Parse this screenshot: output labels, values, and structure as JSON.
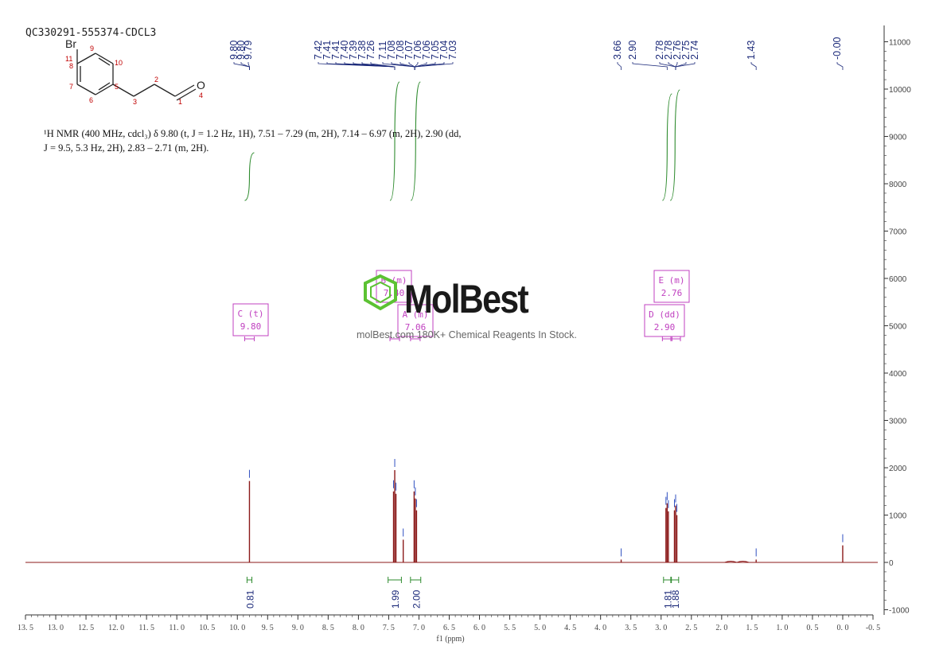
{
  "sample_id": "QC330291-555374-CDCL3",
  "structure": {
    "atoms": [
      {
        "label": "Br"
      },
      {
        "label": "11"
      },
      {
        "label": "8"
      },
      {
        "label": "9"
      },
      {
        "label": "10"
      },
      {
        "label": "7"
      },
      {
        "label": "5"
      },
      {
        "label": "6"
      },
      {
        "label": "3"
      },
      {
        "label": "2"
      },
      {
        "label": "1"
      },
      {
        "label": "O"
      },
      {
        "label": "4"
      }
    ]
  },
  "nmr_summary_lines": [
    "¹H NMR (400 MHz, cdcl₃) δ 9.80 (t, J = 1.2 Hz, 1H), 7.51 – 7.29 (m, 2H), 7.14 – 6.97 (m, 2H), 2.90 (dd,",
    "J = 9.5, 5.3 Hz, 2H), 2.83 – 2.71 (m, 2H)."
  ],
  "watermark": {
    "logo": "MolBest",
    "tagline": "molBest.com 180K+ Chemical Reagents In Stock."
  },
  "colors": {
    "spectrum": "#8b1a1a",
    "integral": "#2e8b2e",
    "peak_label": "#1c2a7a",
    "multiplet": "#c040c0",
    "logo_green": "#5cc233",
    "axis": "#333333"
  },
  "chart_data": {
    "type": "line",
    "xlabel": "f1 (ppm)",
    "x_reversed": true,
    "xlim": [
      13.5,
      -0.5
    ],
    "ylim": [
      -1000,
      11000
    ],
    "x_ticks": [
      "13.5",
      "13.0",
      "12.5",
      "12.0",
      "11.5",
      "11.0",
      "10.5",
      "10.0",
      "9.5",
      "9.0",
      "8.5",
      "8.0",
      "7.5",
      "7.0",
      "6.5",
      "6.0",
      "5.5",
      "5.0",
      "4.5",
      "4.0",
      "3.5",
      "3.0",
      "2.5",
      "2.0",
      "1.5",
      "1.0",
      "0.5",
      "0.0",
      "-0.5"
    ],
    "y_ticks": [
      "11000",
      "10000",
      "9000",
      "8000",
      "7000",
      "6000",
      "5000",
      "4000",
      "3000",
      "2000",
      "1000",
      "0",
      "-1000"
    ],
    "peaks": [
      {
        "ppm": 9.8,
        "height": 1720
      },
      {
        "ppm": 7.42,
        "height": 1500
      },
      {
        "ppm": 7.4,
        "height": 1950
      },
      {
        "ppm": 7.38,
        "height": 1450
      },
      {
        "ppm": 7.26,
        "height": 480
      },
      {
        "ppm": 7.08,
        "height": 1500
      },
      {
        "ppm": 7.06,
        "height": 1350
      },
      {
        "ppm": 7.04,
        "height": 1100
      },
      {
        "ppm": 3.66,
        "height": 60
      },
      {
        "ppm": 2.92,
        "height": 1150
      },
      {
        "ppm": 2.9,
        "height": 1250
      },
      {
        "ppm": 2.88,
        "height": 1080
      },
      {
        "ppm": 2.78,
        "height": 1100
      },
      {
        "ppm": 2.76,
        "height": 1200
      },
      {
        "ppm": 2.74,
        "height": 1000
      },
      {
        "ppm": 1.43,
        "height": 60
      },
      {
        "ppm": 0.0,
        "height": 360
      }
    ],
    "peak_label_groups": [
      {
        "labels": [
          "9.80",
          "9.80",
          "9.79"
        ],
        "anchor_ppm": 9.8
      },
      {
        "labels": [
          "7.42",
          "7.41",
          "7.41",
          "7.40",
          "7.39",
          "7.38",
          "7.26"
        ],
        "anchor_ppm": 7.4
      },
      {
        "labels": [
          "7.11",
          "7.08",
          "7.08",
          "7.07",
          "7.06",
          "7.06",
          "7.05",
          "7.04",
          "7.03"
        ],
        "anchor_ppm": 7.07
      },
      {
        "labels": [
          "3.66"
        ],
        "anchor_ppm": 3.66
      },
      {
        "labels": [
          "2.90"
        ],
        "anchor_ppm": 2.9
      },
      {
        "labels": [
          "2.78",
          "2.78",
          "2.76",
          "2.75",
          "2.74"
        ],
        "anchor_ppm": 2.76
      },
      {
        "labels": [
          "1.43"
        ],
        "anchor_ppm": 1.43
      },
      {
        "labels": [
          "-0.00"
        ],
        "anchor_ppm": 0.0
      }
    ],
    "integrals": [
      {
        "from": 9.84,
        "to": 9.76,
        "value": "0.81"
      },
      {
        "from": 7.51,
        "to": 7.29,
        "value": "1.99"
      },
      {
        "from": 7.14,
        "to": 6.97,
        "value": "2.00"
      },
      {
        "from": 2.96,
        "to": 2.84,
        "value": "1.81"
      },
      {
        "from": 2.83,
        "to": 2.71,
        "value": "1.88"
      }
    ],
    "multiplets": [
      {
        "label": "C (t)",
        "value": "9.80",
        "ppm": 9.8
      },
      {
        "label": "B (m)",
        "value": "7.40",
        "ppm": 7.4
      },
      {
        "label": "A (m)",
        "value": "7.06",
        "ppm": 7.06
      },
      {
        "label": "D (dd)",
        "value": "2.90",
        "ppm": 2.9
      },
      {
        "label": "E (m)",
        "value": "2.76",
        "ppm": 2.76
      }
    ]
  }
}
